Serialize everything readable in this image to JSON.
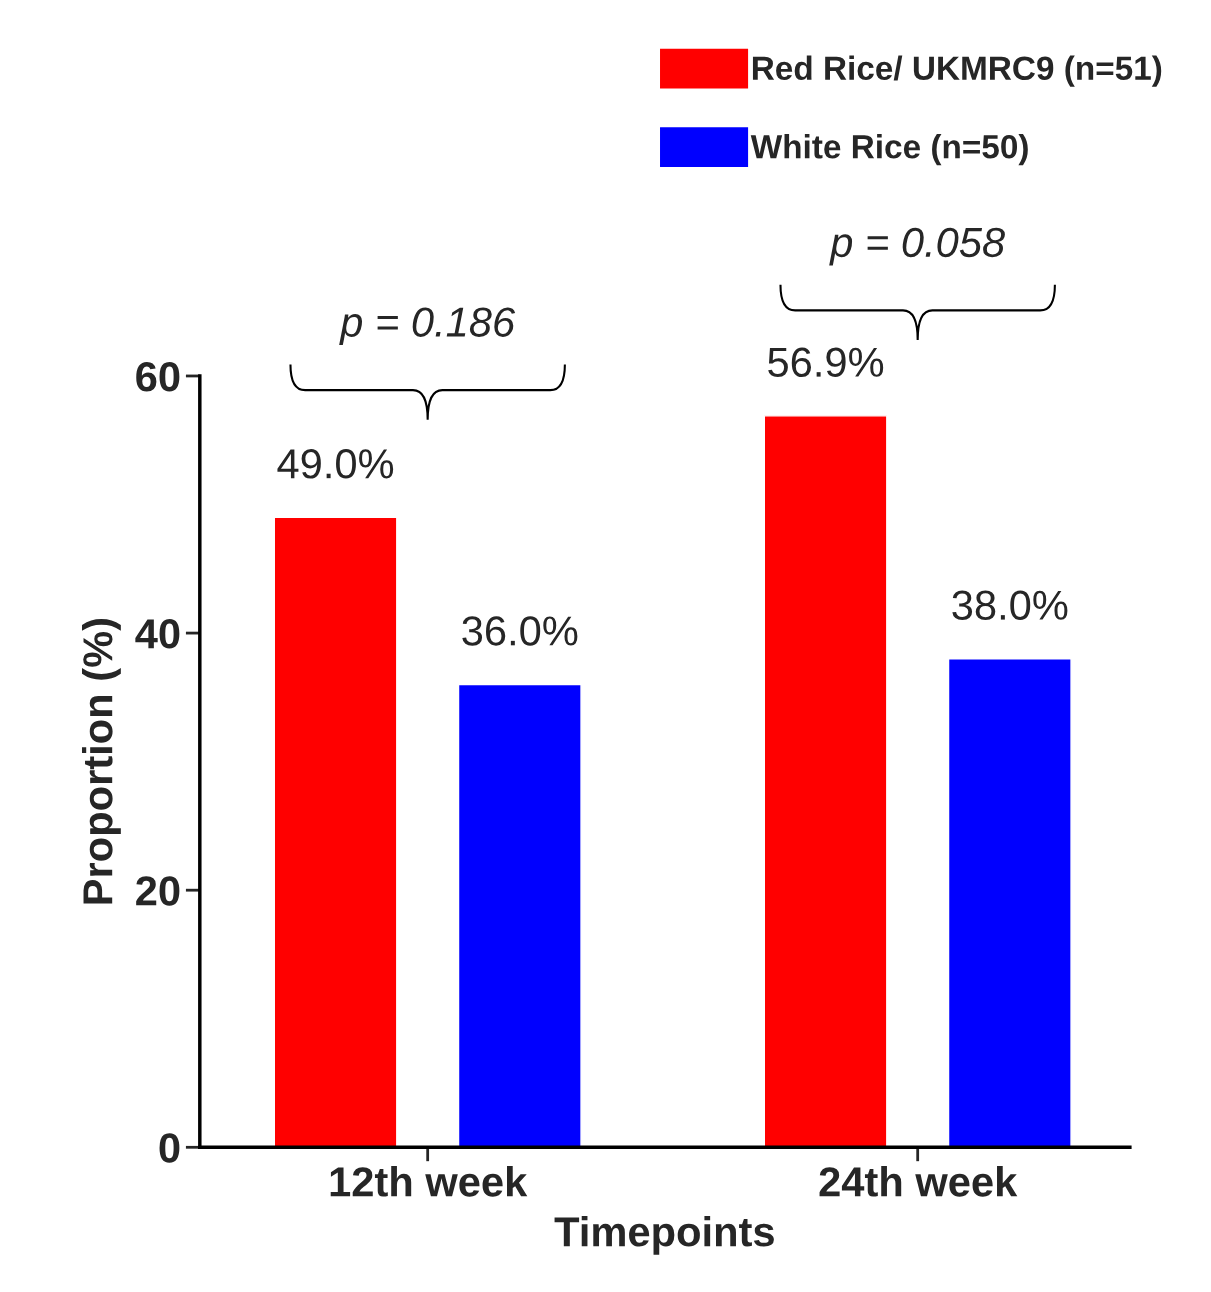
{
  "chart_data": {
    "type": "bar",
    "xlabel": "Timepoints",
    "ylabel": "Proportion (%)",
    "categories": [
      "12th week",
      "24th week"
    ],
    "series": [
      {
        "name": "Red Rice/ UKMRC9 (n=51)",
        "color": "#ff0000",
        "values": [
          49.0,
          56.9
        ],
        "value_labels": [
          "49.0%",
          "56.9%"
        ]
      },
      {
        "name": "White Rice (n=50)",
        "color": "#0000ff",
        "values": [
          36.0,
          38.0
        ],
        "value_labels": [
          "36.0%",
          "38.0%"
        ]
      }
    ],
    "ylim": [
      0,
      60
    ],
    "yticks": [
      0,
      20,
      40,
      60
    ],
    "grid": false,
    "legend": "top right",
    "annotations": [
      "p = 0.186",
      "p = 0.058"
    ]
  }
}
